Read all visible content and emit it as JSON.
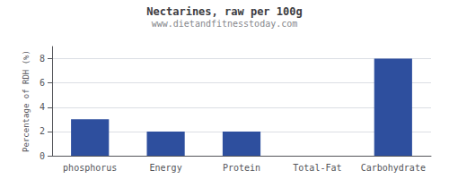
{
  "chart_data": {
    "type": "bar",
    "title": "Nectarines, raw per 100g",
    "subtitle": "www.dietandfitnesstoday.com",
    "ylabel": "Percentage of RDH (%)",
    "categories": [
      "phosphorus",
      "Energy",
      "Protein",
      "Total-Fat",
      "Carbohydrate"
    ],
    "values": [
      3.0,
      2.0,
      2.0,
      0.0,
      8.0
    ],
    "color": "#2e4f9e",
    "ylim": [
      0,
      9
    ],
    "yticks": [
      0,
      2,
      4,
      6,
      8
    ],
    "grid": true
  }
}
